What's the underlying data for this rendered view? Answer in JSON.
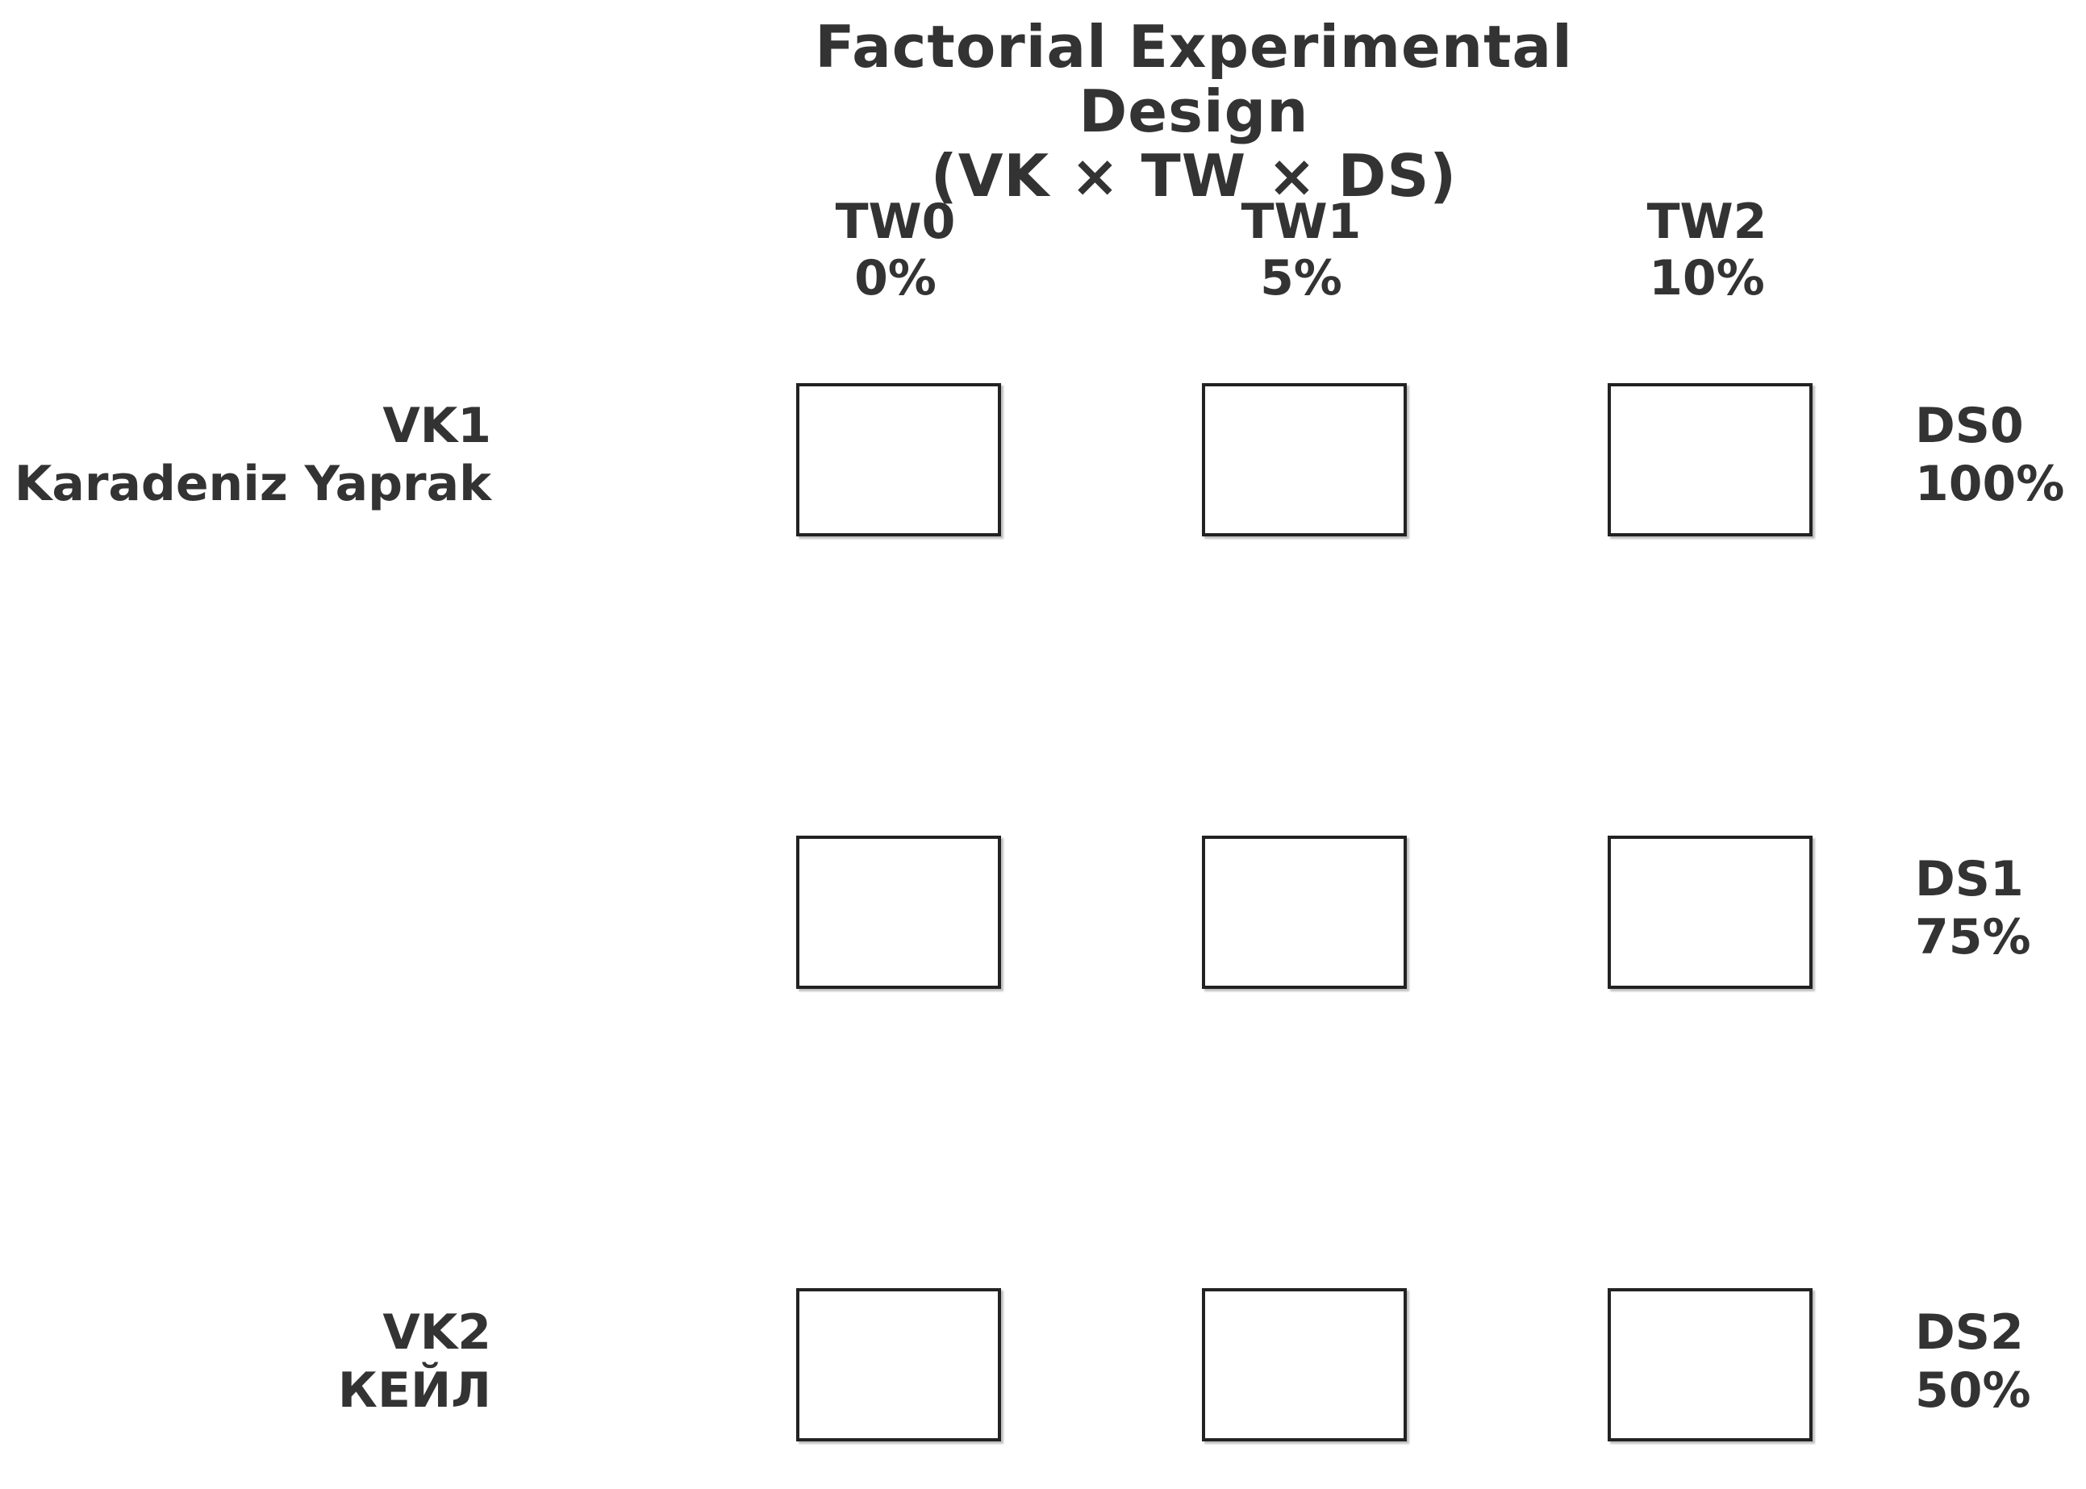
{
  "title": {
    "line1": "Factorial Experimental Design",
    "line2": "(VK × TW × DS)"
  },
  "tw_levels": [
    {
      "code": "TW0",
      "value": "0%"
    },
    {
      "code": "TW1",
      "value": "5%"
    },
    {
      "code": "TW2",
      "value": "10%"
    }
  ],
  "ds_levels": [
    {
      "code": "DS0",
      "value": "100%"
    },
    {
      "code": "DS1",
      "value": "75%"
    },
    {
      "code": "DS2",
      "value": "50%"
    }
  ],
  "vk_levels": [
    {
      "code": "VK1",
      "name": "Karadeniz Yaprak"
    },
    {
      "code": "VK2",
      "name": "КЕЙЛ"
    }
  ],
  "grid": {
    "rows": 3,
    "cols": 3
  }
}
